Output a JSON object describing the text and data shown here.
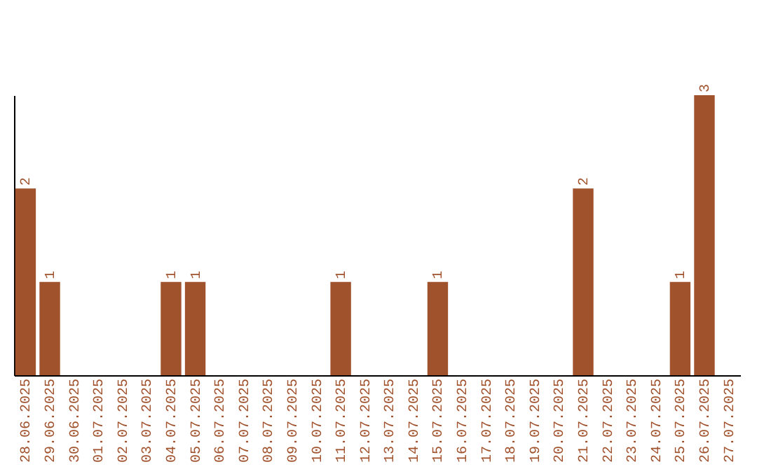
{
  "chart_data": {
    "type": "bar",
    "categories": [
      "28.06.2025",
      "29.06.2025",
      "30.06.2025",
      "01.07.2025",
      "02.07.2025",
      "03.07.2025",
      "04.07.2025",
      "05.07.2025",
      "06.07.2025",
      "07.07.2025",
      "08.07.2025",
      "09.07.2025",
      "10.07.2025",
      "11.07.2025",
      "12.07.2025",
      "13.07.2025",
      "14.07.2025",
      "15.07.2025",
      "16.07.2025",
      "17.07.2025",
      "18.07.2025",
      "19.07.2025",
      "20.07.2025",
      "21.07.2025",
      "22.07.2025",
      "23.07.2025",
      "24.07.2025",
      "25.07.2025",
      "26.07.2025",
      "27.07.2025"
    ],
    "values": [
      2,
      1,
      0,
      0,
      0,
      0,
      1,
      1,
      0,
      0,
      0,
      0,
      0,
      1,
      0,
      0,
      0,
      1,
      0,
      0,
      0,
      0,
      0,
      2,
      0,
      0,
      0,
      1,
      3,
      0
    ],
    "value_labels": [
      "2",
      "1",
      null,
      null,
      null,
      null,
      "1",
      "1",
      null,
      null,
      null,
      null,
      null,
      "1",
      null,
      null,
      null,
      "1",
      null,
      null,
      null,
      null,
      null,
      "2",
      null,
      null,
      null,
      "1",
      "3",
      null
    ],
    "color": "#a0522d",
    "grid": false,
    "tick_labels": "x"
  }
}
